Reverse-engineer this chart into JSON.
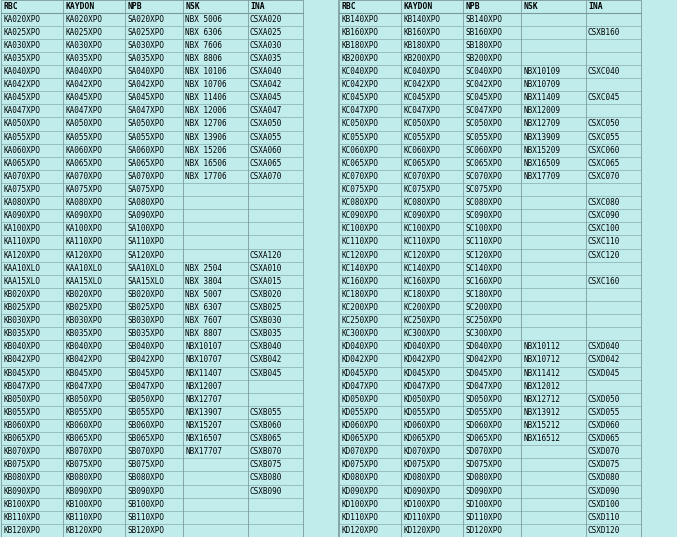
{
  "bg_color": "#c0ecec",
  "text_color": "#000000",
  "font_size": 5.5,
  "header_font_size": 5.8,
  "left_headers": [
    "RBC",
    "KAYDON",
    "NPB",
    "NSK",
    "INA"
  ],
  "right_headers": [
    "RBC",
    "KAYDON",
    "NPB",
    "NSK",
    "INA"
  ],
  "left_col_widths": [
    62,
    62,
    58,
    65,
    55
  ],
  "right_col_widths": [
    62,
    62,
    58,
    65,
    55
  ],
  "left_data": [
    [
      "KA020XPO",
      "KA020XPO",
      "SA020XPO",
      "NBX 5006",
      "CSXA020"
    ],
    [
      "KA025XPO",
      "KA025XPO",
      "SA025XPO",
      "NBX 6306",
      "CSXA025"
    ],
    [
      "KA030XPO",
      "KA030XPO",
      "SA030XPO",
      "NBX 7606",
      "CSXA030"
    ],
    [
      "KA035XPO",
      "KA035XPO",
      "SA035XPO",
      "NBX 8806",
      "CSXA035"
    ],
    [
      "KA040XPO",
      "KA040XPO",
      "SA040XPO",
      "NBX 10106",
      "CSXA040"
    ],
    [
      "KA042XPO",
      "KA042XPO",
      "SA042XPO",
      "NBX 10706",
      "CSXA042"
    ],
    [
      "KA045XPO",
      "KA045XPO",
      "SA045XPO",
      "NBX 11406",
      "CSXA045"
    ],
    [
      "KA047XPO",
      "KA047XPO",
      "SA047XPO",
      "NBX 12006",
      "CSXA047"
    ],
    [
      "KA050XPO",
      "KA050XPO",
      "SA050XPO",
      "NBX 12706",
      "CSXA050"
    ],
    [
      "KA055XPO",
      "KA055XPO",
      "SA055XPO",
      "NBX 13906",
      "CSXA055"
    ],
    [
      "KA060XPO",
      "KA060XPO",
      "SA060XPO",
      "NBX 15206",
      "CSXA060"
    ],
    [
      "KA065XPO",
      "KA065XPO",
      "SA065XPO",
      "NBX 16506",
      "CSXA065"
    ],
    [
      "KA070XPO",
      "KA070XPO",
      "SA070XPO",
      "NBX 17706",
      "CSXA070"
    ],
    [
      "KA075XPO",
      "KA075XPO",
      "SA075XPO",
      "",
      ""
    ],
    [
      "KA080XPO",
      "KA080XPO",
      "SA080XPO",
      "",
      ""
    ],
    [
      "KA090XPO",
      "KA090XPO",
      "SA090XPO",
      "",
      ""
    ],
    [
      "KA100XPO",
      "KA100XPO",
      "SA100XPO",
      "",
      ""
    ],
    [
      "KA110XPO",
      "KA110XPO",
      "SA110XPO",
      "",
      ""
    ],
    [
      "KA120XPO",
      "KA120XPO",
      "SA120XPO",
      "",
      "CSXA120"
    ],
    [
      "KAA10XLO",
      "KAA10XLO",
      "SAA10XLO",
      "NBX 2504",
      "CSXA010"
    ],
    [
      "KAA15XLO",
      "KAA15XLO",
      "SAA15XLO",
      "NBX 3804",
      "CSXA015"
    ],
    [
      "KB020XPO",
      "KB020XPO",
      "SB020XPO",
      "NBX 5007",
      "CSXB020"
    ],
    [
      "KB025XPO",
      "KB025XPO",
      "SB025XPO",
      "NBX 6307",
      "CSXB025"
    ],
    [
      "KB030XPO",
      "KB030XPO",
      "SB030XPO",
      "NBX 7607",
      "CSXB030"
    ],
    [
      "KB035XPO",
      "KB035XPO",
      "SB035XPO",
      "NBX 8807",
      "CSXB035"
    ],
    [
      "KB040XPO",
      "KB040XPO",
      "SB040XPO",
      "NBX10107",
      "CSXB040"
    ],
    [
      "KB042XPO",
      "KB042XPO",
      "SB042XPO",
      "NBX10707",
      "CSXB042"
    ],
    [
      "KB045XPO",
      "KB045XPO",
      "SB045XPO",
      "NBX11407",
      "CSXB045"
    ],
    [
      "KB047XPO",
      "KB047XPO",
      "SB047XPO",
      "NBX12007",
      ""
    ],
    [
      "KB050XPO",
      "KB050XPO",
      "SB050XPO",
      "NBX12707",
      ""
    ],
    [
      "KB055XPO",
      "KB055XPO",
      "SB055XPO",
      "NBX13907",
      "CSXB055"
    ],
    [
      "KB060XPO",
      "KB060XPO",
      "SB060XPO",
      "NBX15207",
      "CSXB060"
    ],
    [
      "KB065XPO",
      "KB065XPO",
      "SB065XPO",
      "NBX16507",
      "CSXB065"
    ],
    [
      "KB070XPO",
      "KB070XPO",
      "SB070XPO",
      "NBX17707",
      "CSXB070"
    ],
    [
      "KB075XPO",
      "KB075XPO",
      "SB075XPO",
      "",
      "CSXB075"
    ],
    [
      "KB080XPO",
      "KB080XPO",
      "SB080XPO",
      "",
      "CSXB080"
    ],
    [
      "KB090XPO",
      "KB090XPO",
      "SB090XPO",
      "",
      "CSXB090"
    ],
    [
      "KB100XPO",
      "KB100XPO",
      "SB100XPO",
      "",
      ""
    ],
    [
      "KB110XPO",
      "KB110XPO",
      "SB110XPO",
      "",
      ""
    ],
    [
      "KB120XPO",
      "KB120XPO",
      "SB120XPO",
      "",
      ""
    ]
  ],
  "right_data": [
    [
      "KB140XPO",
      "KB140XPO",
      "SB140XPO",
      "",
      ""
    ],
    [
      "KB160XPO",
      "KB160XPO",
      "SB160XPO",
      "",
      "CSXB160"
    ],
    [
      "KB180XPO",
      "KB180XPO",
      "SB180XPO",
      "",
      ""
    ],
    [
      "KB200XPO",
      "KB200XPO",
      "SB200XPO",
      "",
      ""
    ],
    [
      "KC040XPO",
      "KC040XPO",
      "SC040XPO",
      "NBX10109",
      "CSXC040"
    ],
    [
      "KC042XPO",
      "KC042XPO",
      "SC042XPO",
      "NBX10709",
      ""
    ],
    [
      "KC045XPO",
      "KC045XPO",
      "SC045XPO",
      "NBX11409",
      "CSXC045"
    ],
    [
      "KC047XPO",
      "KC047XPO",
      "SC047XPO",
      "NBX12009",
      ""
    ],
    [
      "KC050XPO",
      "KC050XPO",
      "SC050XPO",
      "NBX12709",
      "CSXC050"
    ],
    [
      "KC055XPO",
      "KC055XPO",
      "SC055XPO",
      "NBX13909",
      "CSXC055"
    ],
    [
      "KC060XPO",
      "KC060XPO",
      "SC060XPO",
      "NBX15209",
      "CSXC060"
    ],
    [
      "KC065XPO",
      "KC065XPO",
      "SC065XPO",
      "NBX16509",
      "CSXC065"
    ],
    [
      "KC070XPO",
      "KC070XPO",
      "SC070XPO",
      "NBX17709",
      "CSXC070"
    ],
    [
      "KC075XPO",
      "KC075XPO",
      "SC075XPO",
      "",
      ""
    ],
    [
      "KC080XPO",
      "KC080XPO",
      "SC080XPO",
      "",
      "CSXC080"
    ],
    [
      "KC090XPO",
      "KC090XPO",
      "SC090XPO",
      "",
      "CSXC090"
    ],
    [
      "KC100XPO",
      "KC100XPO",
      "SC100XPO",
      "",
      "CSXC100"
    ],
    [
      "KC110XPO",
      "KC110XPO",
      "SC110XPO",
      "",
      "CSXC110"
    ],
    [
      "KC120XPO",
      "KC120XPO",
      "SC120XPO",
      "",
      "CSXC120"
    ],
    [
      "KC140XPO",
      "KC140XPO",
      "SC140XPO",
      "",
      ""
    ],
    [
      "KC160XPO",
      "KC160XPO",
      "SC160XPO",
      "",
      "CSXC160"
    ],
    [
      "KC180XPO",
      "KC180XPO",
      "SC180XPO",
      "",
      ""
    ],
    [
      "KC200XPO",
      "KC200XPO",
      "SC200XPO",
      "",
      ""
    ],
    [
      "KC250XPO",
      "KC250XPO",
      "SC250XPO",
      "",
      ""
    ],
    [
      "KC300XPO",
      "KC300XPO",
      "SC300XPO",
      "",
      ""
    ],
    [
      "KD040XPO",
      "KD040XPO",
      "SD040XPO",
      "NBX10112",
      "CSXD040"
    ],
    [
      "KD042XPO",
      "KD042XPO",
      "SD042XPO",
      "NBX10712",
      "CSXD042"
    ],
    [
      "KD045XPO",
      "KD045XPO",
      "SD045XPO",
      "NBX11412",
      "CSXD045"
    ],
    [
      "KD047XPO",
      "KD047XPO",
      "SD047XPO",
      "NBX12012",
      ""
    ],
    [
      "KD050XPO",
      "KD050XPO",
      "SD050XPO",
      "NBX12712",
      "CSXD050"
    ],
    [
      "KD055XPO",
      "KD055XPO",
      "SD055XPO",
      "NBX13912",
      "CSXD055"
    ],
    [
      "KD060XPO",
      "KD060XPO",
      "SD060XPO",
      "NBX15212",
      "CSXD060"
    ],
    [
      "KD065XPO",
      "KD065XPO",
      "SD065XPO",
      "NBX16512",
      "CSXD065"
    ],
    [
      "KD070XPO",
      "KD070XPO",
      "SD070XPO",
      "",
      "CSXD070"
    ],
    [
      "KD075XPO",
      "KD075XPO",
      "SD075XPO",
      "",
      "CSXD075"
    ],
    [
      "KD080XPO",
      "KD080XPO",
      "SD080XPO",
      "",
      "CSXD080"
    ],
    [
      "KD090XPO",
      "KD090XPO",
      "SD090XPO",
      "",
      "CSXD090"
    ],
    [
      "KD100XPO",
      "KD100XPO",
      "SD100XPO",
      "",
      "CSXD100"
    ],
    [
      "KD110XPO",
      "KD110XPO",
      "SD110XPO",
      "",
      "CSXD110"
    ],
    [
      "KD120XPO",
      "KD120XPO",
      "SD120XPO",
      "",
      "CSXD120"
    ]
  ]
}
